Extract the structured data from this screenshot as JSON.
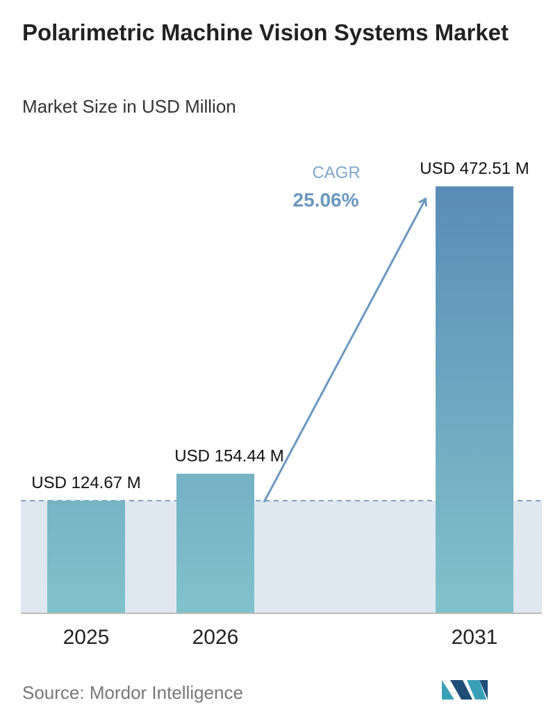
{
  "chart_data": {
    "type": "bar",
    "title": "Polarimetric Machine Vision Systems Market",
    "subtitle": "Market Size in USD Million",
    "categories": [
      "2025",
      "2026",
      "2031"
    ],
    "values": [
      124.67,
      154.44,
      472.51
    ],
    "value_labels": [
      "USD 124.67 M",
      "USD 154.44 M",
      "USD 472.51 M"
    ],
    "annotation": {
      "label": "CAGR",
      "value": "25.06%"
    },
    "source": "Source: Mordor Intelligence"
  }
}
